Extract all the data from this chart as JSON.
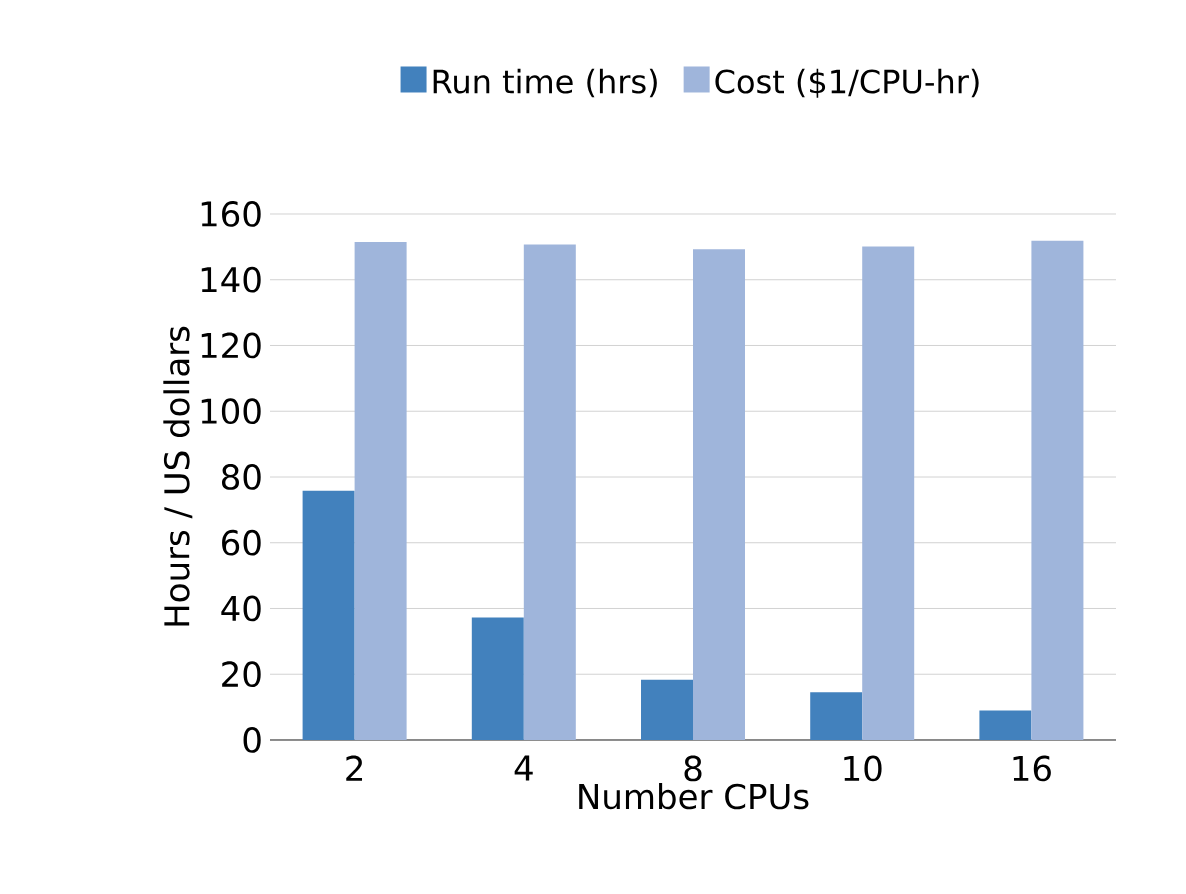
{
  "chart_data": {
    "type": "bar",
    "xlabel": "Number CPUs",
    "ylabel": "Hours / US dollars",
    "categories": [
      "2",
      "4",
      "8",
      "10",
      "16"
    ],
    "series": [
      {
        "name": "Run time (hrs)",
        "color": "#4281bd",
        "values": [
          75.8,
          37.3,
          18.3,
          14.5,
          9.0
        ]
      },
      {
        "name": "Cost ($1/CPU-hr)",
        "color": "#9fb5db",
        "values": [
          151.5,
          150.7,
          149.3,
          150.1,
          151.9
        ]
      }
    ],
    "ylim": [
      0,
      160
    ],
    "yticks": [
      0,
      20,
      40,
      60,
      80,
      100,
      120,
      140,
      160
    ],
    "grid": "y",
    "legend": "top"
  }
}
